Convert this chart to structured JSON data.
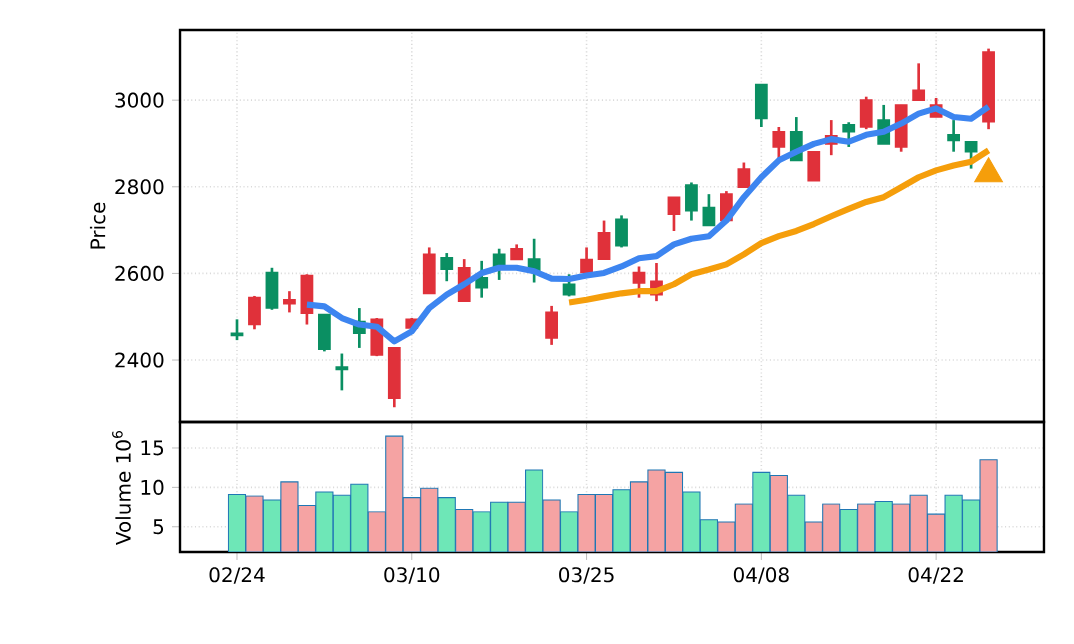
{
  "chart_data": [
    {
      "type": "candlestick",
      "ylabel": "Price",
      "categories": [
        null,
        null,
        null,
        null,
        null,
        null,
        null,
        null,
        null,
        null,
        null,
        null,
        null,
        null,
        null,
        null,
        null,
        null,
        null,
        null,
        null,
        null,
        null,
        null,
        null,
        null,
        null,
        null,
        null,
        null,
        null,
        null,
        null,
        null,
        null,
        null,
        null,
        null,
        null,
        null,
        null,
        null,
        null,
        null
      ],
      "ohlc": [
        [
          2462,
          2494,
          2446,
          2457
        ],
        [
          2482,
          2548,
          2471,
          2544
        ],
        [
          2602,
          2613,
          2516,
          2520
        ],
        [
          2530,
          2559,
          2510,
          2539
        ],
        [
          2508,
          2598,
          2482,
          2595
        ],
        [
          2505,
          2505,
          2420,
          2425
        ],
        [
          2384,
          2415,
          2330,
          2378
        ],
        [
          2489,
          2520,
          2428,
          2462
        ],
        [
          2412,
          2497,
          2409,
          2494
        ],
        [
          2312,
          2428,
          2291,
          2428
        ],
        [
          2474,
          2497,
          2468,
          2494
        ],
        [
          2554,
          2660,
          2554,
          2644
        ],
        [
          2636,
          2647,
          2582,
          2610
        ],
        [
          2536,
          2633,
          2536,
          2613
        ],
        [
          2590,
          2629,
          2544,
          2567
        ],
        [
          2644,
          2657,
          2585,
          2613
        ],
        [
          2632,
          2667,
          2632,
          2657
        ],
        [
          2633,
          2680,
          2579,
          2605
        ],
        [
          2451,
          2525,
          2435,
          2510
        ],
        [
          2575,
          2598,
          2547,
          2551
        ],
        [
          2602,
          2660,
          2602,
          2632
        ],
        [
          2633,
          2722,
          2633,
          2694
        ],
        [
          2725,
          2734,
          2660,
          2664
        ],
        [
          2578,
          2616,
          2544,
          2602
        ],
        [
          2551,
          2624,
          2536,
          2582
        ],
        [
          2737,
          2776,
          2698,
          2776
        ],
        [
          2804,
          2810,
          2722,
          2745
        ],
        [
          2752,
          2783,
          2711,
          2711
        ],
        [
          2722,
          2790,
          2722,
          2783
        ],
        [
          2799,
          2856,
          2799,
          2841
        ],
        [
          3036,
          3036,
          2938,
          2958
        ],
        [
          2892,
          2938,
          2856,
          2927
        ],
        [
          2927,
          2961,
          2861,
          2861
        ],
        [
          2814,
          2881,
          2814,
          2881
        ],
        [
          2899,
          2954,
          2873,
          2918
        ],
        [
          2943,
          2949,
          2892,
          2927
        ],
        [
          2938,
          3008,
          2933,
          3000
        ],
        [
          2954,
          2989,
          2899,
          2899
        ],
        [
          2892,
          2989,
          2881,
          2989
        ],
        [
          3000,
          3085,
          3000,
          3023
        ],
        [
          2961,
          3005,
          2961,
          2989
        ],
        [
          2920,
          2954,
          2881,
          2907
        ],
        [
          2904,
          2904,
          2842,
          2881
        ],
        [
          2950,
          3119,
          2933,
          3111
        ]
      ],
      "colors": [
        "#0a8f62",
        "#e0313a",
        "#0a8f62",
        "#e0313a",
        "#e0313a",
        "#0a8f62",
        "#0a8f62",
        "#0a8f62",
        "#e0313a",
        "#e0313a",
        "#e0313a",
        "#e0313a",
        "#0a8f62",
        "#e0313a",
        "#0a8f62",
        "#0a8f62",
        "#e0313a",
        "#0a8f62",
        "#e0313a",
        "#0a8f62",
        "#e0313a",
        "#e0313a",
        "#0a8f62",
        "#e0313a",
        "#e0313a",
        "#e0313a",
        "#0a8f62",
        "#0a8f62",
        "#e0313a",
        "#e0313a",
        "#0a8f62",
        "#e0313a",
        "#0a8f62",
        "#e0313a",
        "#e0313a",
        "#0a8f62",
        "#e0313a",
        "#0a8f62",
        "#e0313a",
        "#e0313a",
        "#e0313a",
        "#0a8f62",
        "#0a8f62",
        "#e0313a"
      ],
      "series": [
        {
          "type": "line",
          "color": "#3d85f0",
          "values": [
            null,
            null,
            null,
            null,
            2528,
            2524,
            2497,
            2482,
            2477,
            2443,
            2466,
            2520,
            2551,
            2575,
            2601,
            2613,
            2613,
            2605,
            2588,
            2587,
            2595,
            2601,
            2616,
            2635,
            2640,
            2667,
            2680,
            2686,
            2722,
            2776,
            2822,
            2861,
            2881,
            2899,
            2910,
            2904,
            2920,
            2927,
            2946,
            2969,
            2981,
            2961,
            2957,
            2985
          ]
        },
        {
          "type": "line",
          "color": "#f59e0b",
          "values": [
            null,
            null,
            null,
            null,
            null,
            null,
            null,
            null,
            null,
            null,
            null,
            null,
            null,
            null,
            null,
            null,
            null,
            null,
            null,
            2533,
            2539,
            2547,
            2554,
            2559,
            2559,
            2575,
            2598,
            2609,
            2621,
            2644,
            2670,
            2686,
            2698,
            2714,
            2732,
            2749,
            2765,
            2776,
            2799,
            2822,
            2838,
            2849,
            2858,
            2884
          ]
        },
        {
          "type": "scatter",
          "color": "#f59e0b",
          "marker": "triangle",
          "values": [
            null,
            null,
            null,
            null,
            null,
            null,
            null,
            null,
            null,
            null,
            null,
            null,
            null,
            null,
            null,
            null,
            null,
            null,
            null,
            null,
            null,
            null,
            null,
            null,
            null,
            null,
            null,
            null,
            null,
            null,
            null,
            null,
            null,
            null,
            null,
            null,
            null,
            null,
            null,
            null,
            null,
            null,
            null,
            2830
          ]
        }
      ],
      "ylim": [
        2257,
        3162
      ],
      "yticks": [
        2400,
        2600,
        2800,
        3000
      ],
      "grid": true,
      "tick_labels": "y"
    },
    {
      "type": "bar",
      "ylabel": "Volume  10$^{6}$",
      "categories": [
        "02/24",
        null,
        null,
        null,
        null,
        null,
        null,
        null,
        null,
        null,
        "03/10",
        null,
        null,
        null,
        null,
        null,
        null,
        null,
        null,
        null,
        "03/25",
        null,
        null,
        null,
        null,
        null,
        null,
        null,
        null,
        null,
        "04/08",
        null,
        null,
        null,
        null,
        null,
        null,
        null,
        null,
        null,
        "04/22",
        null,
        null,
        null
      ],
      "values": [
        9.1,
        8.9,
        8.4,
        10.7,
        7.7,
        9.4,
        9.0,
        10.4,
        6.9,
        16.5,
        8.7,
        9.9,
        8.7,
        7.2,
        6.9,
        8.1,
        8.1,
        12.2,
        8.4,
        6.9,
        9.1,
        9.1,
        9.7,
        10.7,
        12.2,
        11.9,
        9.4,
        5.9,
        5.6,
        7.9,
        11.9,
        11.5,
        9.0,
        5.6,
        7.9,
        7.2,
        7.9,
        8.2,
        7.9,
        9.0,
        6.6,
        9.0,
        8.4,
        13.5
      ],
      "colors": [
        "#6ee7b7",
        "#f5a3a3",
        "#6ee7b7",
        "#f5a3a3",
        "#f5a3a3",
        "#6ee7b7",
        "#6ee7b7",
        "#6ee7b7",
        "#f5a3a3",
        "#f5a3a3",
        "#f5a3a3",
        "#f5a3a3",
        "#6ee7b7",
        "#f5a3a3",
        "#6ee7b7",
        "#6ee7b7",
        "#f5a3a3",
        "#6ee7b7",
        "#f5a3a3",
        "#6ee7b7",
        "#f5a3a3",
        "#f5a3a3",
        "#6ee7b7",
        "#f5a3a3",
        "#f5a3a3",
        "#f5a3a3",
        "#6ee7b7",
        "#6ee7b7",
        "#f5a3a3",
        "#f5a3a3",
        "#6ee7b7",
        "#f5a3a3",
        "#6ee7b7",
        "#f5a3a3",
        "#f5a3a3",
        "#6ee7b7",
        "#f5a3a3",
        "#6ee7b7",
        "#f5a3a3",
        "#f5a3a3",
        "#f5a3a3",
        "#6ee7b7",
        "#6ee7b7",
        "#f5a3a3"
      ],
      "ylim": [
        1.8,
        18.3
      ],
      "yticks": [
        5,
        10,
        15
      ],
      "grid": true
    }
  ]
}
